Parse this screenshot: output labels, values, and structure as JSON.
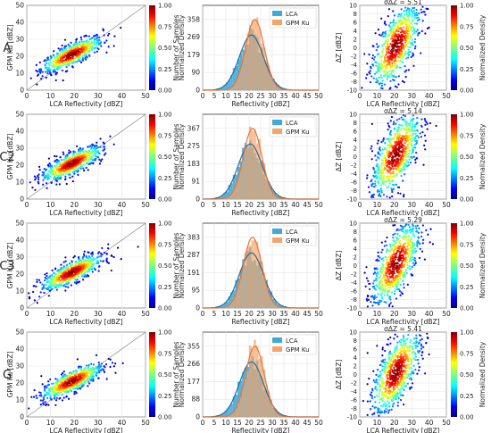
{
  "figure": {
    "rows": [
      {
        "label": "A",
        "sigma": "σΔZ = 5.51",
        "ticks": [
          "358",
          "269",
          "179",
          "90",
          "0"
        ],
        "ymax": 358
      },
      {
        "label": "C2",
        "sigma": "σΔZ = 5.14",
        "ticks": [
          "367",
          "275",
          "183",
          "91",
          "0"
        ],
        "ymax": 367
      },
      {
        "label": "C3",
        "sigma": "σΔZ = 5.29",
        "ticks": [
          "383",
          "287",
          "191",
          "95",
          "0"
        ],
        "ymax": 383
      },
      {
        "label": "G",
        "sigma": "σΔZ = 5.41",
        "ticks": [
          "355",
          "266",
          "177",
          "88",
          "0"
        ],
        "ymax": 355
      }
    ]
  },
  "chart_data": [
    {
      "type": "scatter",
      "panel": "density scatter (col 1)",
      "xlabel": "LCA Reflectivity [dBZ]",
      "ylabel": "GPM Ku [dBZ]",
      "xlim": [
        0,
        50
      ],
      "ylim": [
        0,
        50
      ],
      "xticks": [
        0,
        10,
        20,
        30,
        40,
        50
      ],
      "yticks": [
        0,
        10,
        20,
        30,
        40,
        50
      ],
      "reference_line": "1:1",
      "colorbar": {
        "label": "Normalized Density",
        "ticks": [
          "0.00",
          "0.25",
          "0.50",
          "0.75",
          "1.00"
        ]
      }
    },
    {
      "type": "bar",
      "panel": "histograms with fitted curves (col 2)",
      "xlabel": "Reflectivity [dBZ]",
      "ylabel": "Number of Samples",
      "xlim": [
        0,
        50
      ],
      "xticks": [
        0,
        5,
        10,
        15,
        20,
        25,
        30,
        35,
        40,
        45,
        50
      ],
      "series": [
        {
          "name": "LCA",
          "color": "#3fa9d9",
          "peak_x": [
            21,
            20.5,
            21,
            21
          ]
        },
        {
          "name": "GPM Ku",
          "color": "#f4a46a",
          "peak_x": [
            22.5,
            21.5,
            21.5,
            22.5
          ]
        }
      ]
    },
    {
      "type": "scatter",
      "panel": "difference density (col 3)",
      "xlabel": "LCA Reflectivity [dBZ]",
      "ylabel": "ΔZ [dBZ]",
      "xlim": [
        0,
        50
      ],
      "ylim": [
        -10,
        10
      ],
      "xticks": [
        0,
        10,
        20,
        30,
        40,
        50
      ],
      "yticks": [
        -10,
        -8,
        -6,
        -4,
        -2,
        0,
        2,
        4,
        6,
        8,
        10
      ],
      "colorbar": {
        "label": "Normalized Density",
        "ticks": [
          "0.00",
          "0.25",
          "0.50",
          "0.75",
          "1.00"
        ]
      }
    }
  ]
}
